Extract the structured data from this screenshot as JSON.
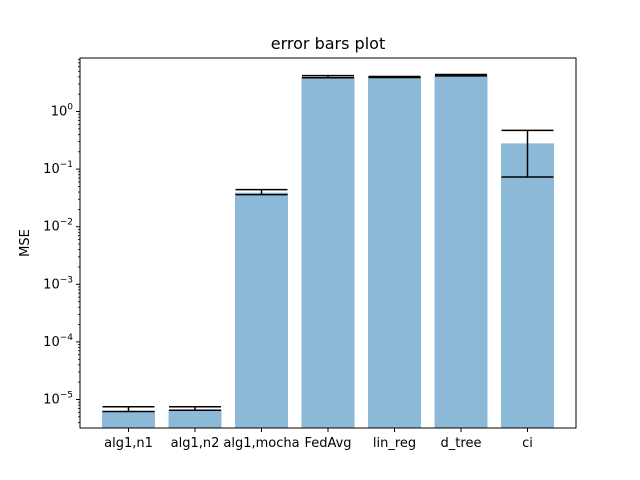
{
  "chart_data": {
    "type": "bar",
    "title": "error bars plot",
    "xlabel": "",
    "ylabel": "MSE",
    "yscale": "log",
    "ylim": [
      3.2e-06,
      8.5
    ],
    "grid": false,
    "categories": [
      "alg1,n1",
      "alg1,n2",
      "alg1,mocha",
      "FedAvg",
      "lin_reg",
      "d_tree",
      "ci"
    ],
    "values": [
      6.3e-06,
      6.6e-06,
      0.039,
      4.0,
      4.0,
      4.3,
      0.28
    ],
    "error_low": [
      6.2e-06,
      6.5e-06,
      0.036,
      3.85,
      3.9,
      4.15,
      0.073
    ],
    "error_high": [
      7.5e-06,
      7.5e-06,
      0.044,
      4.2,
      4.05,
      4.4,
      0.47
    ],
    "yticks": [
      {
        "value": 1e-05,
        "base": "10",
        "exp": "−5"
      },
      {
        "value": 0.0001,
        "base": "10",
        "exp": "−4"
      },
      {
        "value": 0.001,
        "base": "10",
        "exp": "−3"
      },
      {
        "value": 0.01,
        "base": "10",
        "exp": "−2"
      },
      {
        "value": 0.1,
        "base": "10",
        "exp": "−1"
      },
      {
        "value": 1,
        "base": "10",
        "exp": "0"
      }
    ],
    "bar_color": "#8db9d9",
    "error_color": "#000000"
  }
}
